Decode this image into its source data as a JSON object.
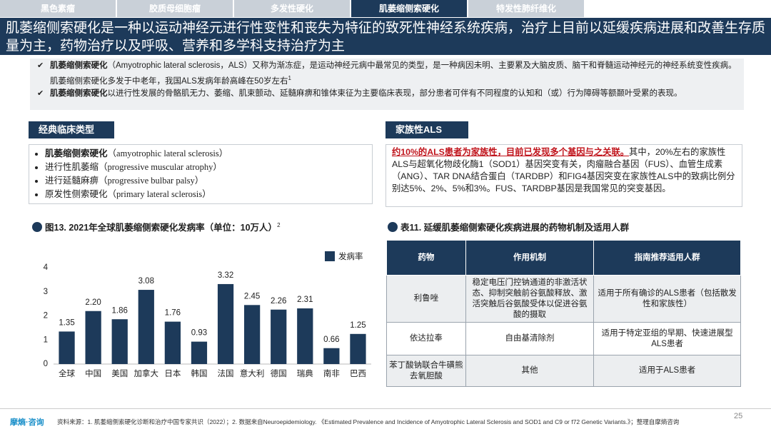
{
  "tabs": [
    "黑色素瘤",
    "胶质母细胞瘤",
    "多发性硬化",
    "肌萎缩侧索硬化",
    "特发性肺纤维化"
  ],
  "active_tab": 3,
  "headline": "肌萎缩侧索硬化是一种以运动神经元进行性变性和丧失为特征的致死性神经系统疾病，治疗上目前以延缓疾病进展和改善生存质量为主，药物治疗以及呼吸、营养和多学科支持治疗为主",
  "bullets": [
    {
      "bold": "肌萎缩侧索硬化",
      "text": "（Amyotrophic lateral sclerosis，ALS）又称为渐冻症，是运动神经元病中最常见的类型，是一种病因未明、主要累及大脑皮质、脑干和脊髓运动神经元的神经系统变性疾病。肌萎缩侧索硬化多发于中老年，我国ALS发病年龄高峰在50岁左右",
      "sup": "1"
    },
    {
      "bold": "肌萎缩侧索硬化",
      "text": "以进行性发展的骨骼肌无力、萎缩、肌束颤动、延髓麻痹和锥体束征为主要临床表现，部分患者可伴有不同程度的认知和（或）行为障碍等额颞叶受累的表现。"
    }
  ],
  "clinical_types": {
    "title": "经典临床类型",
    "items": [
      {
        "name": "肌萎缩侧索硬化",
        "latin": "（amyotrophic lateral sclerosis）"
      },
      {
        "name": "进行性肌萎缩",
        "latin": "（progressive muscular atrophy）"
      },
      {
        "name": "进行延髓麻痹",
        "latin": "（progressive bulbar palsy）"
      },
      {
        "name": "原发性侧索硬化",
        "latin": "（primary lateral sclerosis）"
      }
    ]
  },
  "familial": {
    "title": "家族性ALS",
    "highlight": "约10%的ALS患者为家族性，目前已发现多个基因与之关联。",
    "text": "其中，20%左右的家族性ALS与超氧化物歧化酶1（SOD1）基因突变有关，肉瘤融合基因（FUS）、血管生成素（ANG）、TAR DNA结合蛋白（TARDBP）和FIG4基因突变在家族性ALS中的致病比例分别达5%、2%、5%和3%。FUS、TARDBP基因是我国常见的突变基因。"
  },
  "chart_data": {
    "type": "bar",
    "title": "图13. 2021年全球肌萎缩侧索硬化发病率（单位：10万人）",
    "title_sup": "2",
    "categories": [
      "全球",
      "中国",
      "美国",
      "加拿大",
      "日本",
      "韩国",
      "法国",
      "意大利",
      "德国",
      "瑞典",
      "南非",
      "巴西"
    ],
    "series": [
      {
        "name": "发病率",
        "color": "#1d3a5a",
        "values": [
          1.35,
          2.2,
          1.86,
          3.08,
          1.76,
          0.93,
          3.32,
          2.45,
          2.26,
          2.31,
          0.66,
          1.25
        ],
        "value_labels": [
          "1.35",
          "2.20",
          "1.86",
          "3.08",
          "1.76",
          "0.93",
          "3.32",
          "2.45",
          "2.26",
          "2.31",
          "0.66",
          "1.25"
        ]
      }
    ],
    "ylim": [
      0,
      4
    ],
    "yticks": [
      0,
      1,
      2,
      3,
      4
    ],
    "grid": false,
    "legend": "top-right"
  },
  "table": {
    "title": "表11. 延缓肌萎缩侧索硬化疾病进展的药物机制及适用人群",
    "header": [
      "药物",
      "作用机制",
      "指南推荐适用人群"
    ],
    "rows": [
      [
        "利鲁唑",
        "稳定电压门控钠通道的非激活状态、抑制突触前谷氨酸释放、激活突触后谷氨酸受体以促进谷氨酸的摄取",
        "适用于所有确诊的ALS患者（包括散发性和家族性）"
      ],
      [
        "依达拉奉",
        "自由基清除剂",
        "适用于特定亚组的早期、快速进展型ALS患者"
      ],
      [
        "苯丁酸钠联合牛磺熊去氧胆酸",
        "其他",
        "适用于ALS患者"
      ]
    ]
  },
  "footer": {
    "brand": "摩熵·咨询",
    "source": "资料来源：1. 肌萎缩侧索硬化诊断和治疗中国专家共识（2022）；2. 数据来自Neuroepidemiology. 《Estimated Prevalence and Incidence of Amyotrophic Lateral Sclerosis and SOD1 and C9 or f72 Genetic Variants.》；整理自摩熵咨询",
    "page": 25
  }
}
